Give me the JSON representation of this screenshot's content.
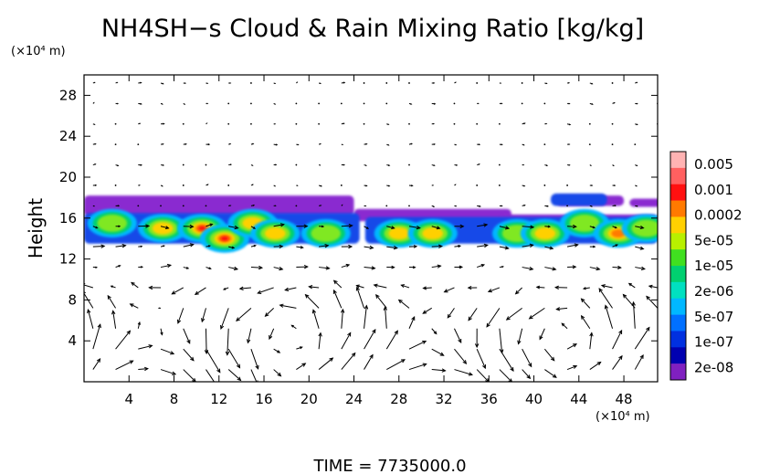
{
  "chart_data": {
    "type": "heatmap",
    "title": "NH4SH−s Cloud & Rain Mixing Ratio [kg/kg]",
    "ylabel": "Height",
    "xlabel": "",
    "x_unit": "(×10⁴ m)",
    "y_unit": "(×10⁴ m)",
    "footer": "TIME  =  7735000.0",
    "xlim": [
      0,
      51
    ],
    "ylim": [
      0,
      30
    ],
    "x_ticks": [
      "4",
      "8",
      "12",
      "16",
      "20",
      "24",
      "28",
      "32",
      "36",
      "40",
      "44",
      "48"
    ],
    "y_ticks": [
      "4",
      "8",
      "12",
      "16",
      "20",
      "24",
      "28"
    ],
    "colorbar": {
      "labels": [
        "0.005",
        "0.001",
        "0.0002",
        "5e-05",
        "1e-05",
        "2e-06",
        "5e-07",
        "1e-07",
        "2e-08"
      ],
      "colors": [
        "#ffb3b3",
        "#ff6060",
        "#ff1010",
        "#ff7a00",
        "#ffd000",
        "#b8f000",
        "#40e020",
        "#00d070",
        "#00e0c0",
        "#00b8ff",
        "#0070ff",
        "#0030e0",
        "#0000b0",
        "#8020c0"
      ]
    },
    "cloud_cells": [
      {
        "x": 2.5,
        "y": 15.5,
        "peak": 2e-05
      },
      {
        "x": 7.0,
        "y": 15.0,
        "peak": 5e-05
      },
      {
        "x": 10.5,
        "y": 15.0,
        "peak": 0.0005
      },
      {
        "x": 12.5,
        "y": 14.0,
        "peak": 0.001
      },
      {
        "x": 15.0,
        "y": 15.5,
        "peak": 0.0001
      },
      {
        "x": 17.0,
        "y": 14.5,
        "peak": 5e-05
      },
      {
        "x": 21.5,
        "y": 14.5,
        "peak": 2e-05
      },
      {
        "x": 28.0,
        "y": 14.5,
        "peak": 5e-05
      },
      {
        "x": 31.0,
        "y": 14.5,
        "peak": 5e-05
      },
      {
        "x": 38.5,
        "y": 14.5,
        "peak": 2e-05
      },
      {
        "x": 41.0,
        "y": 14.5,
        "peak": 0.0001
      },
      {
        "x": 44.5,
        "y": 15.5,
        "peak": 2e-05
      },
      {
        "x": 47.5,
        "y": 14.5,
        "peak": 0.0003
      },
      {
        "x": 50.0,
        "y": 15.0,
        "peak": 2e-05
      }
    ]
  }
}
